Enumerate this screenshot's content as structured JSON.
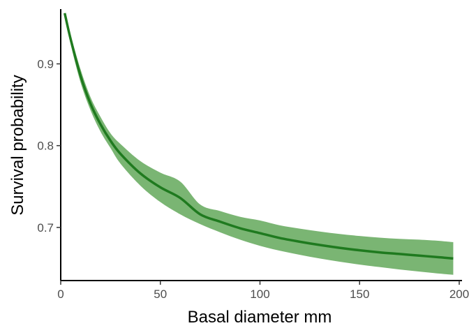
{
  "chart_data": {
    "type": "line",
    "title": "",
    "xlabel": "Basal diameter mm",
    "ylabel": "Survival probability",
    "xlim": [
      0,
      200
    ],
    "ylim": [
      0.635,
      0.967
    ],
    "x_ticks": [
      0,
      50,
      100,
      150,
      200
    ],
    "x_tick_labels": [
      "0",
      "50",
      "100",
      "150",
      "200"
    ],
    "y_ticks": [
      0.7,
      0.8,
      0.9
    ],
    "y_tick_labels": [
      "0.7",
      "0.8",
      "0.9"
    ],
    "grid": false,
    "legend": "none",
    "colors": {
      "line": "#1f7a1f",
      "ribbon": "#7ab573",
      "axis": "#000000"
    },
    "series": [
      {
        "x": [
          2,
          5,
          10,
          15,
          20,
          25,
          30,
          40,
          50,
          60,
          70,
          80,
          90,
          100,
          110,
          120,
          130,
          140,
          150,
          160,
          170,
          180,
          190,
          197
        ],
        "y": [
          0.962,
          0.93,
          0.885,
          0.851,
          0.826,
          0.806,
          0.79,
          0.766,
          0.749,
          0.736,
          0.716,
          0.707,
          0.699,
          0.693,
          0.687,
          0.6825,
          0.6785,
          0.675,
          0.672,
          0.6695,
          0.6675,
          0.6655,
          0.6635,
          0.662
        ],
        "lower": [
          0.961,
          0.924,
          0.877,
          0.843,
          0.817,
          0.797,
          0.778,
          0.751,
          0.731,
          0.716,
          0.704,
          0.694,
          0.685,
          0.6775,
          0.6715,
          0.6665,
          0.662,
          0.658,
          0.6545,
          0.6515,
          0.6485,
          0.646,
          0.6435,
          0.642
        ],
        "upper": [
          0.963,
          0.935,
          0.893,
          0.859,
          0.835,
          0.815,
          0.802,
          0.781,
          0.767,
          0.756,
          0.728,
          0.72,
          0.713,
          0.7085,
          0.7025,
          0.6985,
          0.695,
          0.692,
          0.6895,
          0.6875,
          0.686,
          0.685,
          0.6835,
          0.682
        ]
      }
    ]
  }
}
